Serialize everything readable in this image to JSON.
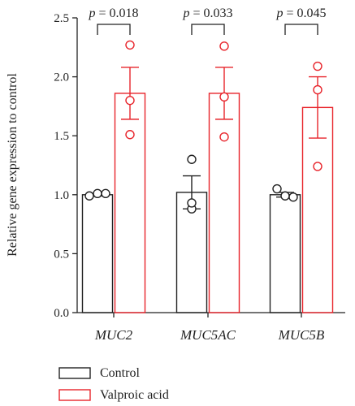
{
  "chart_data": {
    "type": "bar",
    "ylabel": "Relative gene expression to control",
    "ylim": [
      0,
      2.5
    ],
    "yticks": [
      "0.0",
      "0.5",
      "1.0",
      "1.5",
      "2.0",
      "2.5"
    ],
    "yticks_values": [
      0,
      0.5,
      1.0,
      1.5,
      2.0,
      2.5
    ],
    "categories": [
      "MUC2",
      "MUC5AC",
      "MUC5B"
    ],
    "series": [
      {
        "name": "Control",
        "color": "#222222",
        "values": [
          1.0,
          1.02,
          1.0
        ],
        "sem": [
          0.01,
          0.14,
          0.02
        ],
        "points": [
          [
            0.99,
            1.01,
            1.01
          ],
          [
            1.3,
            0.88,
            0.93
          ],
          [
            1.05,
            0.99,
            0.98
          ]
        ]
      },
      {
        "name": "Valproic acid",
        "color": "#e8242b",
        "values": [
          1.86,
          1.86,
          1.74
        ],
        "sem": [
          0.22,
          0.22,
          0.26
        ],
        "points": [
          [
            2.27,
            1.8,
            1.51
          ],
          [
            2.26,
            1.83,
            1.49
          ],
          [
            2.09,
            1.89,
            1.24
          ]
        ]
      }
    ],
    "annotations": [
      "p = 0.018",
      "p = 0.033",
      "p = 0.045"
    ],
    "annotation_prefix": "p",
    "annotation_values": [
      "= 0.018",
      "= 0.033",
      "= 0.045"
    ],
    "legend": {
      "placement": "bottom-left"
    },
    "grid": false
  }
}
